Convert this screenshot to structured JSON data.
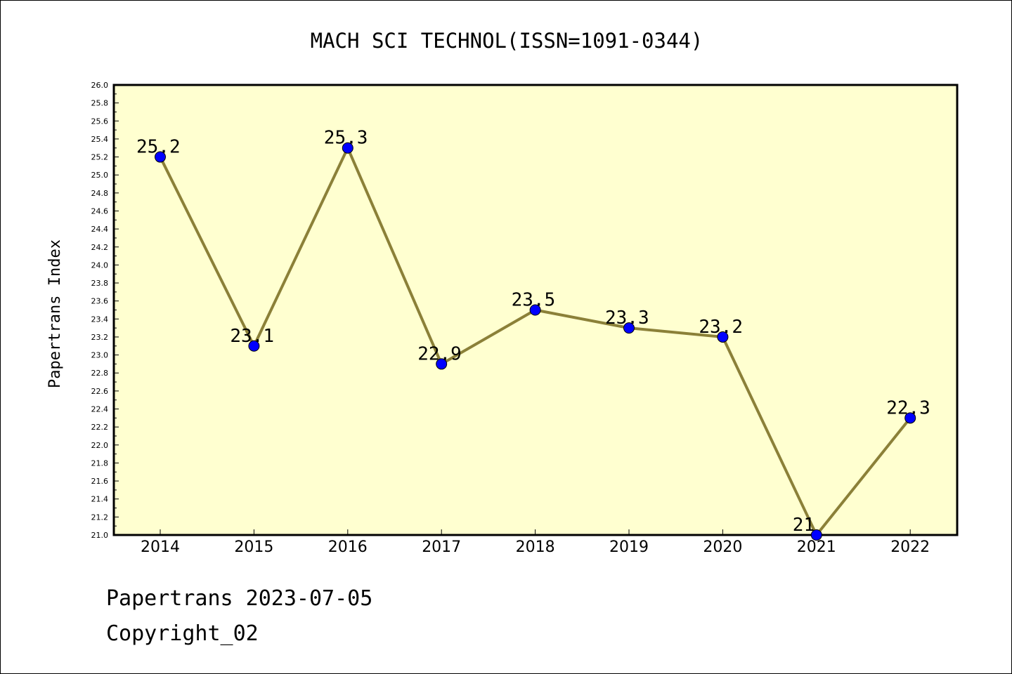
{
  "chart_data": {
    "type": "line",
    "title": "MACH SCI TECHNOL(ISSN=1091-0344)",
    "xlabel": "",
    "ylabel": "Papertrans Index",
    "categories": [
      "2014",
      "2015",
      "2016",
      "2017",
      "2018",
      "2019",
      "2020",
      "2021",
      "2022"
    ],
    "values": [
      25.2,
      23.1,
      25.3,
      22.9,
      23.5,
      23.3,
      23.2,
      21,
      22.3
    ],
    "data_labels": [
      "25.2",
      "23.1",
      "25.3",
      "22.9",
      "23.5",
      "23.3",
      "23.2",
      "21",
      "22.3"
    ],
    "ylim": [
      21.0,
      26.0
    ],
    "ytick_step": 0.2,
    "grid": false,
    "legend": "none",
    "colors": {
      "plot_background": "#ffffd0",
      "line": "#8b8038",
      "marker": "#0000ff",
      "marker_edge": "#000000"
    }
  },
  "footer": {
    "line1": "Papertrans 2023-07-05",
    "line2": "Copyright_02"
  }
}
